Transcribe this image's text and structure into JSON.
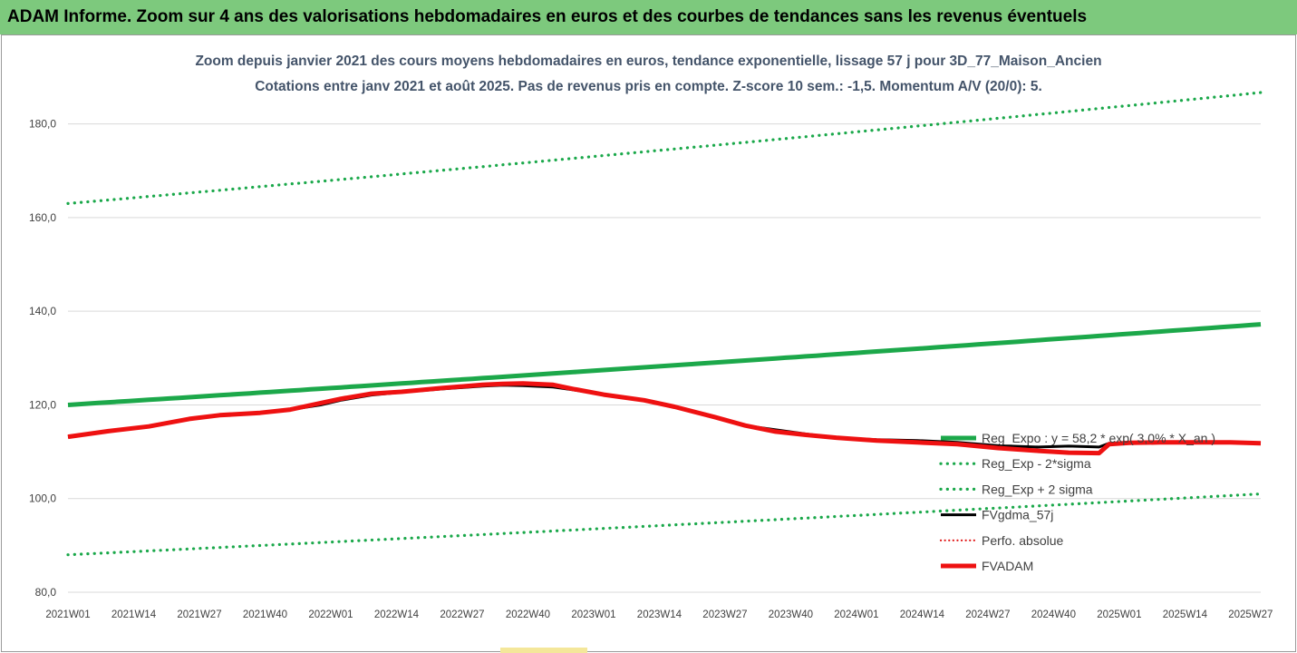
{
  "banner": {
    "text": "ADAM Informe. Zoom sur 4 ans des valorisations hebdomadaires en euros et des courbes de tendances sans les revenus éventuels"
  },
  "colors": {
    "banner_bg": "#7dc97d",
    "reg_expo": "#1ca84a",
    "sigma": "#1aa84a",
    "fvgdma": "#000000",
    "perfo": "#e01010",
    "fvadam": "#ee1111",
    "title": "#44546a",
    "grid": "#d9d9d9"
  },
  "chart_data": {
    "type": "line",
    "title": "Zoom depuis janvier 2021 des cours moyens hebdomadaires en euros, tendance exponentielle, lissage 57 j pour 3D_77_Maison_Ancien",
    "subtitle": "Cotations entre janv 2021 et août 2025. Pas de revenus pris en compte. Z-score 10 sem.: -1,5. Momentum A/V (20/0): 5.",
    "ylim": [
      80,
      190
    ],
    "y_ticks": [
      "80,0",
      "100,0",
      "120,0",
      "140,0",
      "160,0",
      "180,0"
    ],
    "y_tick_values": [
      80,
      100,
      120,
      140,
      160,
      180
    ],
    "x_ticks": [
      "2021W01",
      "2021W14",
      "2021W27",
      "2021W40",
      "2022W01",
      "2022W14",
      "2022W27",
      "2022W40",
      "2023W01",
      "2023W14",
      "2023W27",
      "2023W40",
      "2024W01",
      "2024W14",
      "2024W27",
      "2024W40",
      "2025W01",
      "2025W14",
      "2025W27"
    ],
    "x_tick_weeks": [
      0,
      13,
      26,
      39,
      52,
      65,
      78,
      91,
      104,
      117,
      130,
      143,
      156,
      169,
      182,
      195,
      208,
      221,
      234
    ],
    "x_range_weeks": [
      0,
      236
    ],
    "grid": "horizontal",
    "legend_position": "right",
    "series": [
      {
        "name": "Reg_Expo : y = 58,2 * exp( 3,0% * X_an )",
        "style": "solid",
        "week": [
          0,
          236
        ],
        "values": [
          120.0,
          137.2
        ]
      },
      {
        "name": "Reg_Exp - 2*sigma",
        "style": "dotted",
        "week": [
          0,
          236
        ],
        "values": [
          88.0,
          101.0
        ]
      },
      {
        "name": "Reg_Exp + 2 sigma",
        "style": "dotted",
        "week": [
          0,
          236
        ],
        "values": [
          163.0,
          186.7
        ]
      },
      {
        "name": "FVgdma_57j",
        "style": "solid",
        "week": [
          0,
          8,
          16,
          24,
          30,
          38,
          44,
          50,
          54,
          60,
          66,
          74,
          82,
          86,
          90,
          96,
          100,
          106,
          114,
          120,
          128,
          134,
          140,
          146,
          152,
          160,
          168,
          176,
          184,
          192,
          198,
          204,
          206,
          210,
          216,
          224,
          230,
          236
        ],
        "values": [
          113.2,
          114.4,
          115.4,
          117.0,
          117.8,
          118.3,
          119.0,
          120.0,
          121.0,
          122.1,
          122.7,
          123.4,
          124.0,
          124.2,
          124.1,
          123.8,
          123.2,
          122.2,
          121.0,
          119.6,
          117.4,
          115.6,
          114.7,
          113.8,
          113.0,
          112.6,
          112.4,
          112.0,
          111.3,
          111.0,
          111.2,
          111.0,
          111.8,
          111.8,
          112.0,
          112.0,
          112.0,
          111.8
        ]
      },
      {
        "name": "Perfo. absolue",
        "style": "dotted"
      },
      {
        "name": "FVADAM",
        "style": "solid-thick",
        "week": [
          0,
          8,
          16,
          24,
          30,
          38,
          44,
          50,
          54,
          60,
          66,
          74,
          82,
          86,
          90,
          96,
          100,
          106,
          114,
          120,
          128,
          134,
          140,
          146,
          152,
          160,
          168,
          176,
          184,
          192,
          198,
          204,
          206,
          210,
          216,
          224,
          230,
          236
        ],
        "values": [
          113.2,
          114.4,
          115.4,
          117.0,
          117.8,
          118.3,
          119.0,
          120.4,
          121.3,
          122.4,
          122.8,
          123.6,
          124.3,
          124.5,
          124.6,
          124.3,
          123.4,
          122.2,
          121.0,
          119.6,
          117.4,
          115.6,
          114.3,
          113.6,
          113.0,
          112.4,
          112.0,
          111.6,
          110.8,
          110.2,
          109.8,
          109.7,
          111.6,
          111.9,
          112.0,
          112.0,
          112.0,
          111.8
        ]
      }
    ]
  }
}
